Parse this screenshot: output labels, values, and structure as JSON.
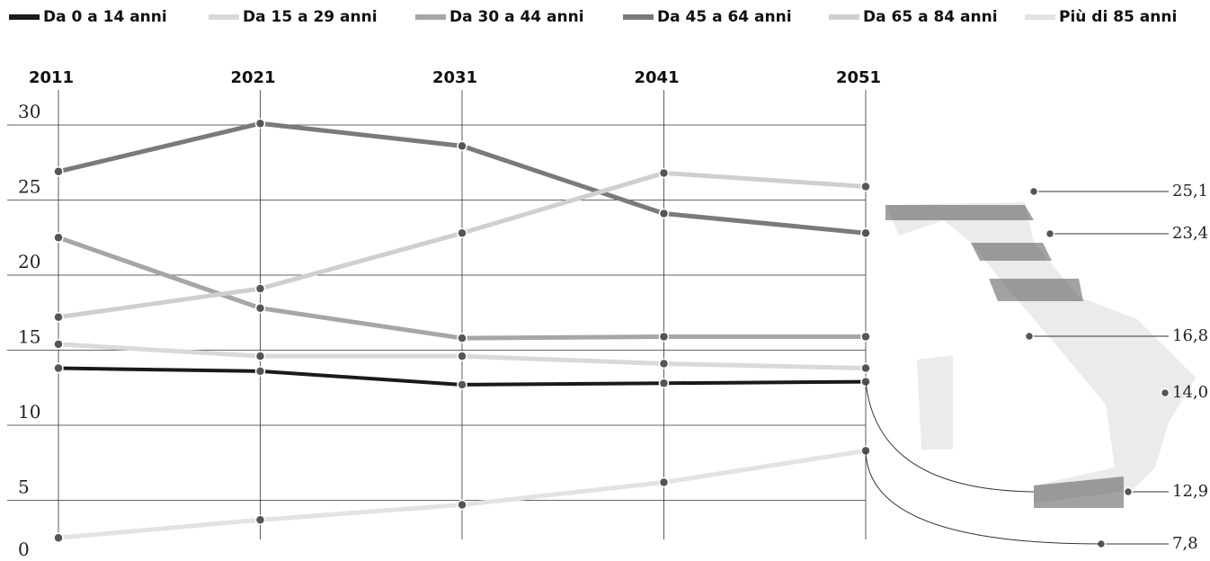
{
  "chart_data": {
    "type": "line",
    "categories": [
      "2011",
      "2021",
      "2031",
      "2041",
      "2051"
    ],
    "series": [
      {
        "name": "Da 0 a 14 anni",
        "color": "#1a1a1a",
        "values": [
          13.8,
          13.6,
          12.7,
          12.8,
          12.9
        ]
      },
      {
        "name": "Da 15 a 29 anni",
        "color": "#d9d9d9",
        "values": [
          15.4,
          14.6,
          14.6,
          14.1,
          13.8
        ]
      },
      {
        "name": "Da 30 a 44 anni",
        "color": "#a6a6a6",
        "values": [
          22.5,
          17.8,
          15.8,
          15.9,
          15.9
        ]
      },
      {
        "name": "Da 45 a 64 anni",
        "color": "#7a7a7a",
        "values": [
          26.9,
          30.1,
          28.6,
          24.1,
          22.8
        ]
      },
      {
        "name": "Da 65 a 84 anni",
        "color": "#cfcfcf",
        "values": [
          17.2,
          19.1,
          22.8,
          26.8,
          25.9
        ]
      },
      {
        "name": "Più di 85 anni",
        "color": "#e3e3e3",
        "values": [
          2.5,
          3.7,
          4.7,
          6.2,
          8.3
        ]
      }
    ],
    "ylim": [
      0,
      30
    ],
    "yticks": [
      0,
      5,
      10,
      15,
      20,
      25,
      30
    ],
    "grid": true,
    "annotations": [
      "25,1",
      "23,4",
      "16,8",
      "14,0",
      "12,9",
      "7,8"
    ]
  }
}
